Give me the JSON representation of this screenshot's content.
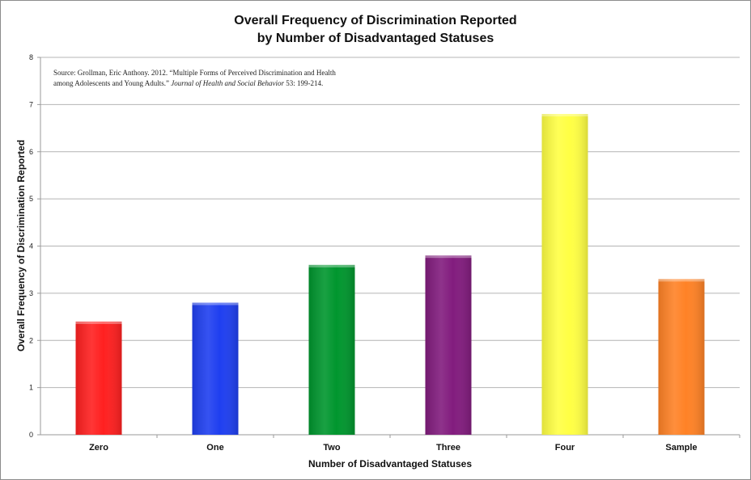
{
  "chart_data": {
    "type": "bar",
    "title": [
      "Overall Frequency of Discrimination Reported",
      "by Number of Disadvantaged Statuses"
    ],
    "xlabel": "Number of Disadvantaged Statuses",
    "ylabel": "Overall Frequency of Discrimination Reported",
    "ylim": [
      0,
      8
    ],
    "yticks": [
      0,
      1,
      2,
      3,
      4,
      5,
      6,
      7,
      8
    ],
    "grid": true,
    "legend": "none",
    "categories": [
      "Zero",
      "One",
      "Two",
      "Three",
      "Four",
      "Sample"
    ],
    "values": [
      2.4,
      2.8,
      3.6,
      3.8,
      6.8,
      3.3
    ],
    "colors": [
      "#ff2020",
      "#1f3ff0",
      "#00962e",
      "#821c7e",
      "#ffff44",
      "#ff8226"
    ],
    "annotation": {
      "line1": "Source: Grollman, Eric Anthony.  2012.  “Multiple Forms of Perceived Discrimination and Health",
      "line2_pre": "among Adolescents and Young Adults.”  ",
      "line2_italic": "Journal of Health and Social Behavior",
      "line2_post": " 53: 199-214."
    }
  }
}
